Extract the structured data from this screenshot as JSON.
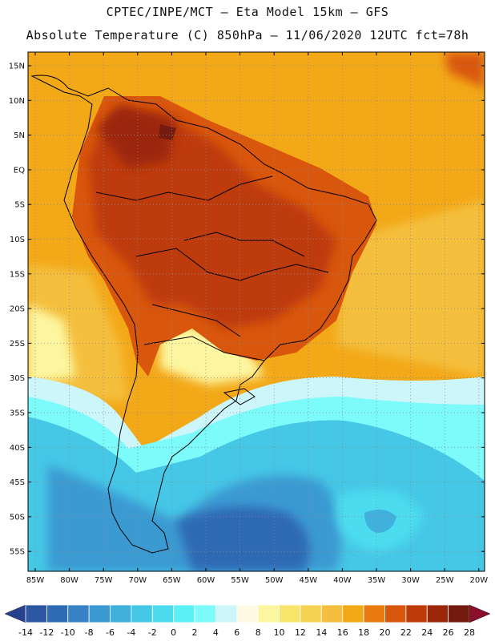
{
  "header": {
    "line1": "CPTEC/INPE/MCT –  Eta Model 15km – GFS",
    "line2": "Absolute Temperature (C) 850hPa – 11/06/2020 12UTC fct=78h"
  },
  "axes": {
    "lat_labels": [
      "15N",
      "10N",
      "5N",
      "EQ",
      "5S",
      "10S",
      "15S",
      "20S",
      "25S",
      "30S",
      "35S",
      "40S",
      "45S",
      "50S",
      "55S"
    ],
    "lon_labels": [
      "85W",
      "80W",
      "75W",
      "70W",
      "65W",
      "60W",
      "55W",
      "50W",
      "45W",
      "40W",
      "35W",
      "30W",
      "25W",
      "20W"
    ]
  },
  "colorbar": {
    "ticks": [
      "-14",
      "-12",
      "-10",
      "-8",
      "-6",
      "-4",
      "-2",
      "0",
      "2",
      "4",
      "6",
      "8",
      "10",
      "12",
      "14",
      "16",
      "18",
      "20",
      "22",
      "24",
      "26",
      "28"
    ],
    "colors": [
      "#27418f",
      "#2d56a3",
      "#2f6bb4",
      "#3682c4",
      "#3b9ad2",
      "#3fb1dc",
      "#45c7e6",
      "#4cdcef",
      "#5af0f6",
      "#7dfafa",
      "#cdf6fa",
      "#fef9e3",
      "#fdf6a0",
      "#f9e46a",
      "#f6d253",
      "#f4bf3e",
      "#f3a818",
      "#e87a10",
      "#d9560d",
      "#be3a09",
      "#9c2708",
      "#751a0e",
      "#8b0f2a"
    ]
  },
  "map_colors": {
    "ocean_warm": "#f3a818",
    "ocean_cool": "#f6d253",
    "land_hot": "#c0580c",
    "land_hotter": "#9c2708",
    "cold_deep": "#2f6bb4",
    "cold_mid": "#3fb1dc",
    "cold_light": "#5af0f6",
    "pale": "#cdf6fa"
  }
}
